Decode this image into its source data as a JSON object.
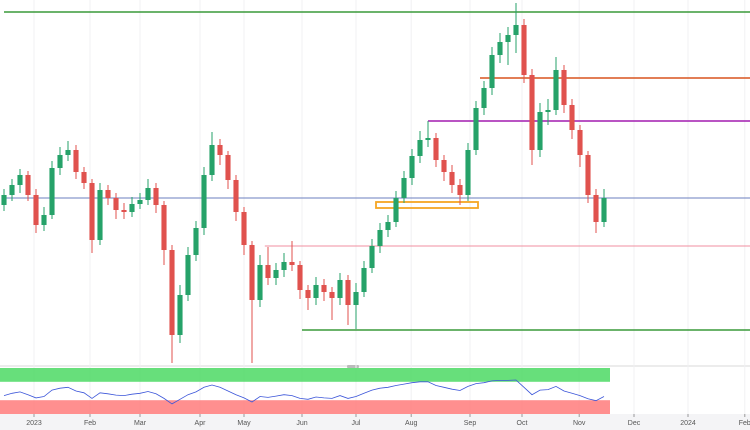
{
  "chart_data": {
    "type": "candlestick",
    "up_color": "#26a269",
    "down_color": "#e0524e",
    "xlim": [
      -0.5,
      93.25
    ],
    "ylim": [
      0,
      365
    ],
    "grid": true,
    "xticks": [
      {
        "value": 3.75,
        "label": "2023"
      },
      {
        "value": 10.75,
        "label": "Feb"
      },
      {
        "value": 17,
        "label": "Mar"
      },
      {
        "value": 24.5,
        "label": "Apr"
      },
      {
        "value": 30,
        "label": "May"
      },
      {
        "value": 37.25,
        "label": "Jun"
      },
      {
        "value": 44,
        "label": "Jul"
      },
      {
        "value": 50.9,
        "label": "Aug"
      },
      {
        "value": 58.25,
        "label": "Sep"
      },
      {
        "value": 64.75,
        "label": "Oct"
      },
      {
        "value": 71.9,
        "label": "Nov"
      },
      {
        "value": 78.75,
        "label": "Dec"
      },
      {
        "value": 85.5,
        "label": "2024"
      },
      {
        "value": 92.6,
        "label": "Feb"
      }
    ],
    "candles": [
      [
        160,
        176,
        154,
        170
      ],
      [
        170,
        186,
        164,
        180
      ],
      [
        180,
        196,
        172,
        190
      ],
      [
        190,
        194,
        164,
        170
      ],
      [
        170,
        176,
        132,
        140
      ],
      [
        140,
        158,
        134,
        150
      ],
      [
        150,
        204,
        146,
        197
      ],
      [
        197,
        218,
        190,
        210
      ],
      [
        210,
        224,
        204,
        215
      ],
      [
        215,
        220,
        186,
        193
      ],
      [
        193,
        198,
        176,
        182
      ],
      [
        182,
        186,
        112,
        125
      ],
      [
        125,
        182,
        120,
        175
      ],
      [
        175,
        180,
        160,
        167
      ],
      [
        167,
        172,
        146,
        155
      ],
      [
        155,
        162,
        146,
        153
      ],
      [
        153,
        168,
        148,
        161
      ],
      [
        161,
        172,
        156,
        165
      ],
      [
        165,
        186,
        160,
        177
      ],
      [
        177,
        182,
        152,
        160
      ],
      [
        160,
        164,
        100,
        115
      ],
      [
        115,
        120,
        2,
        30
      ],
      [
        30,
        80,
        22,
        70
      ],
      [
        70,
        118,
        64,
        110
      ],
      [
        110,
        144,
        104,
        137
      ],
      [
        137,
        198,
        130,
        190
      ],
      [
        190,
        233,
        184,
        220
      ],
      [
        220,
        226,
        200,
        210
      ],
      [
        210,
        214,
        176,
        185
      ],
      [
        185,
        190,
        144,
        153
      ],
      [
        153,
        158,
        110,
        120
      ],
      [
        120,
        124,
        2,
        65
      ],
      [
        65,
        110,
        58,
        100
      ],
      [
        100,
        118,
        80,
        87
      ],
      [
        87,
        102,
        80,
        95
      ],
      [
        95,
        112,
        88,
        103
      ],
      [
        103,
        124,
        94,
        100
      ],
      [
        100,
        104,
        66,
        75
      ],
      [
        75,
        80,
        55,
        67
      ],
      [
        67,
        88,
        60,
        80
      ],
      [
        80,
        86,
        64,
        73
      ],
      [
        73,
        78,
        45,
        67
      ],
      [
        67,
        92,
        60,
        85
      ],
      [
        85,
        90,
        40,
        60
      ],
      [
        60,
        82,
        36,
        73
      ],
      [
        73,
        104,
        68,
        97
      ],
      [
        97,
        126,
        92,
        119
      ],
      [
        119,
        142,
        112,
        135
      ],
      [
        135,
        150,
        128,
        143
      ],
      [
        143,
        174,
        138,
        167
      ],
      [
        167,
        194,
        162,
        187
      ],
      [
        187,
        216,
        180,
        209
      ],
      [
        209,
        234,
        202,
        225
      ],
      [
        225,
        244,
        218,
        227
      ],
      [
        227,
        232,
        198,
        205
      ],
      [
        205,
        210,
        184,
        193
      ],
      [
        193,
        200,
        172,
        180
      ],
      [
        180,
        186,
        160,
        170
      ],
      [
        170,
        222,
        164,
        215
      ],
      [
        215,
        264,
        210,
        257
      ],
      [
        257,
        284,
        250,
        277
      ],
      [
        277,
        318,
        270,
        310
      ],
      [
        310,
        332,
        302,
        323
      ],
      [
        323,
        338,
        300,
        330
      ],
      [
        330,
        362,
        312,
        340
      ],
      [
        340,
        346,
        282,
        290
      ],
      [
        290,
        296,
        200,
        215
      ],
      [
        215,
        262,
        208,
        253
      ],
      [
        253,
        266,
        240,
        255
      ],
      [
        255,
        308,
        250,
        295
      ],
      [
        295,
        300,
        252,
        260
      ],
      [
        260,
        266,
        226,
        235
      ],
      [
        235,
        240,
        198,
        210
      ],
      [
        210,
        214,
        162,
        170
      ],
      [
        170,
        176,
        132,
        143
      ],
      [
        143,
        176,
        138,
        167
      ]
    ],
    "levels": [
      {
        "value": 353,
        "color": "#3a9a3a",
        "from": 0
      },
      {
        "value": 287,
        "color": "#d9541e",
        "from": 59.5
      },
      {
        "value": 244,
        "color": "#a21caf",
        "from": 53
      },
      {
        "value": 167,
        "color": "#6b7fbf",
        "from": 0
      },
      {
        "value": 119,
        "color": "#f08fa0",
        "from": 32.6
      },
      {
        "value": 35,
        "color": "#3a9a3a",
        "from": 37.25
      }
    ],
    "zone": {
      "from": 47,
      "to": 58.75,
      "low": 157,
      "high": 163,
      "color": "#f5a623"
    },
    "rsi": {
      "color": "#3b55d9",
      "ylim": [
        0,
        100
      ],
      "bands": [
        {
          "low": 70,
          "high": 100,
          "color": "#4cd964"
        },
        {
          "low": 0,
          "high": 30,
          "color": "#ff7b7b"
        }
      ],
      "values": [
        40,
        45,
        48,
        42,
        35,
        38,
        52,
        56,
        58,
        50,
        46,
        34,
        46,
        44,
        41,
        40,
        43,
        45,
        49,
        44,
        34,
        22,
        32,
        42,
        48,
        58,
        63,
        58,
        50,
        42,
        35,
        26,
        38,
        36,
        39,
        42,
        40,
        34,
        32,
        37,
        35,
        34,
        40,
        34,
        38,
        45,
        52,
        56,
        58,
        62,
        65,
        68,
        70,
        70,
        62,
        58,
        54,
        51,
        60,
        66,
        68,
        72,
        73,
        73,
        74,
        58,
        42,
        52,
        53,
        60,
        50,
        45,
        40,
        33,
        29,
        38
      ]
    }
  }
}
